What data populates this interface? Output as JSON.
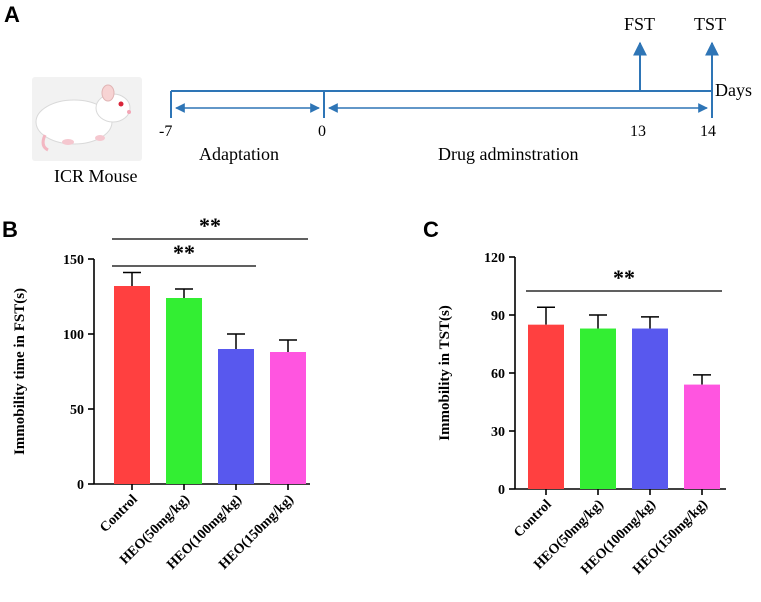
{
  "panels": {
    "a": "A",
    "b": "B",
    "c": "C"
  },
  "timeline": {
    "days_label": "Days",
    "ticks": [
      "-7",
      "0",
      "13",
      "14"
    ],
    "events": [
      "FST",
      "TST"
    ],
    "phases": [
      "Adaptation",
      "Drug adminstration"
    ],
    "animal_label": "ICR Mouse"
  },
  "colors": {
    "control": "#ff4040",
    "heo50": "#33ee33",
    "heo100": "#5858ee",
    "heo150": "#ff55e0",
    "timeline": "#2e75b6"
  },
  "chart_data": [
    {
      "type": "bar",
      "panel": "B",
      "title": "",
      "xlabel": "",
      "ylabel": "Immobility time in FST(s)",
      "categories": [
        "Control",
        "HEO(50mg/kg)",
        "HEO(100mg/kg)",
        "HEO(150mg/kg)"
      ],
      "values": [
        132,
        124,
        90,
        88
      ],
      "errors": [
        9,
        6,
        10,
        8
      ],
      "ylim": [
        0,
        150
      ],
      "yticks": [
        "0",
        "50",
        "100",
        "150"
      ],
      "significance": [
        {
          "from": 0,
          "to": 2,
          "label": "**"
        },
        {
          "from": 0,
          "to": 3,
          "label": "**"
        }
      ]
    },
    {
      "type": "bar",
      "panel": "C",
      "title": "",
      "xlabel": "",
      "ylabel": "Immobility in  TST(s)",
      "categories": [
        "Control",
        "HEO(50mg/kg)",
        "HEO(100mg/kg)",
        "HEO(150mg/kg)"
      ],
      "values": [
        85,
        83,
        83,
        54
      ],
      "errors": [
        9,
        7,
        6,
        5
      ],
      "ylim": [
        0,
        120
      ],
      "yticks": [
        "0",
        "30",
        "60",
        "90",
        "120"
      ],
      "significance": [
        {
          "from": 0,
          "to": 3,
          "label": "**"
        }
      ]
    }
  ]
}
